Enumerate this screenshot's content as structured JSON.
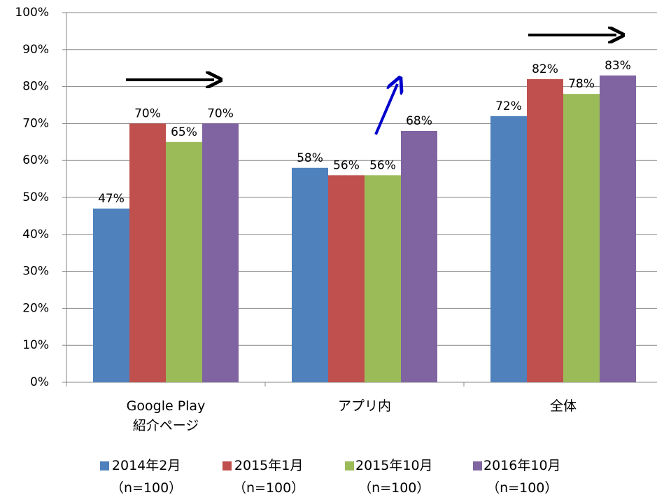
{
  "chart_data": {
    "type": "bar",
    "categories": [
      "Google Play\n紹介ページ",
      "アプリ内",
      "全体"
    ],
    "series": [
      {
        "name": "2014年2月\n（n=100）",
        "color": "#4f81bd",
        "values": [
          47,
          58,
          72
        ],
        "value_labels": [
          "47%",
          "58%",
          "72%"
        ]
      },
      {
        "name": "2015年1月\n（n=100）",
        "color": "#c0504d",
        "values": [
          70,
          56,
          82
        ],
        "value_labels": [
          "70%",
          "56%",
          "82%"
        ]
      },
      {
        "name": "2015年10月\n（n=100）",
        "color": "#9bbb59",
        "values": [
          65,
          56,
          78
        ],
        "value_labels": [
          "65%",
          "56%",
          "78%"
        ]
      },
      {
        "name": "2016年10月\n（n=100）",
        "color": "#8064a2",
        "values": [
          70,
          68,
          83
        ],
        "value_labels": [
          "70%",
          "68%",
          "83%"
        ]
      }
    ],
    "ylim": [
      0,
      100
    ],
    "yticks": [
      {
        "value": 0,
        "label": "0%"
      },
      {
        "value": 10,
        "label": "10%"
      },
      {
        "value": 20,
        "label": "20%"
      },
      {
        "value": 30,
        "label": "30%"
      },
      {
        "value": 40,
        "label": "40%"
      },
      {
        "value": 50,
        "label": "50%"
      },
      {
        "value": 60,
        "label": "60%"
      },
      {
        "value": 70,
        "label": "70%"
      },
      {
        "value": 80,
        "label": "80%"
      },
      {
        "value": 90,
        "label": "90%"
      },
      {
        "value": 100,
        "label": "100%"
      }
    ],
    "grid": true
  }
}
